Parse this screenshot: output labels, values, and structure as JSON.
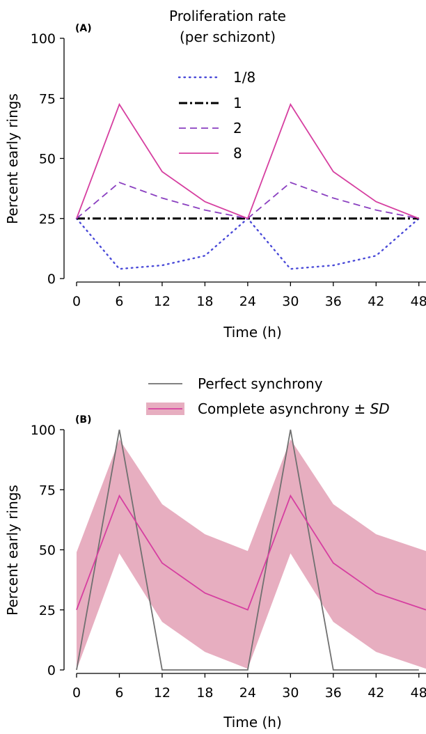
{
  "chart_data": [
    {
      "panel_label": "(A)",
      "type": "line",
      "xlabel": "Time (h)",
      "ylabel": "Percent early rings",
      "xlim": [
        0,
        49
      ],
      "ylim": [
        0,
        100
      ],
      "x_ticks": [
        0,
        6,
        12,
        18,
        24,
        30,
        36,
        42,
        48
      ],
      "y_ticks": [
        0,
        25,
        50,
        75,
        100
      ],
      "legend": {
        "title_line1": "Proliferation rate",
        "title_line2": "(per schizont)",
        "placement": "top-center"
      },
      "series": [
        {
          "name": "1/8",
          "color": "#4a4ad8",
          "style": "dotted",
          "x": [
            0,
            6,
            12,
            18,
            24,
            30,
            36,
            42,
            48
          ],
          "y": [
            25,
            4,
            5.5,
            9.5,
            25,
            4,
            5.5,
            9.5,
            25
          ]
        },
        {
          "name": "1",
          "color": "#000000",
          "style": "dashdot",
          "x": [
            0,
            6,
            12,
            18,
            24,
            30,
            36,
            42,
            48
          ],
          "y": [
            25,
            25,
            25,
            25,
            25,
            25,
            25,
            25,
            25
          ]
        },
        {
          "name": "2",
          "color": "#8a3fc0",
          "style": "dashed",
          "x": [
            0,
            6,
            12,
            18,
            24,
            30,
            36,
            42,
            48
          ],
          "y": [
            25,
            40,
            33.5,
            28.5,
            25,
            40,
            33.5,
            28.5,
            25
          ]
        },
        {
          "name": "8",
          "color": "#d63fa0",
          "style": "solid",
          "x": [
            0,
            6,
            12,
            18,
            24,
            30,
            36,
            42,
            48
          ],
          "y": [
            25,
            72.5,
            44.5,
            32,
            25,
            72.5,
            44.5,
            32,
            25
          ]
        }
      ]
    },
    {
      "panel_label": "(B)",
      "type": "line",
      "xlabel": "Time (h)",
      "ylabel": "Percent early rings",
      "xlim": [
        0,
        49
      ],
      "ylim": [
        0,
        100
      ],
      "x_ticks": [
        0,
        6,
        12,
        18,
        24,
        30,
        36,
        42,
        48
      ],
      "y_ticks": [
        0,
        25,
        50,
        75,
        100
      ],
      "legend": {
        "entries": [
          "Perfect synchrony",
          "Complete asynchrony ± "
        ],
        "entry2_italic": "SD",
        "placement": "top-center"
      },
      "series": [
        {
          "name": "Perfect synchrony",
          "color": "#707070",
          "style": "solid",
          "x": [
            0,
            6,
            12,
            18,
            24,
            30,
            36,
            42,
            48
          ],
          "y": [
            0,
            100,
            0,
            0,
            0,
            100,
            0,
            0,
            0
          ]
        },
        {
          "name": "Complete asynchrony",
          "color": "#d63fa0",
          "style": "solid",
          "x": [
            0,
            6,
            12,
            18,
            24,
            30,
            36,
            42,
            49
          ],
          "y": [
            25,
            72.5,
            44.5,
            32,
            25,
            72.5,
            44.5,
            32,
            25
          ],
          "band_upper": [
            49,
            96,
            69,
            56.5,
            49.5,
            96,
            69,
            56.5,
            49.5
          ],
          "band_lower": [
            0,
            48.5,
            20,
            7.5,
            0.5,
            48.5,
            20,
            7.5,
            0.5
          ],
          "band_color": "#e7aec0"
        }
      ]
    }
  ]
}
